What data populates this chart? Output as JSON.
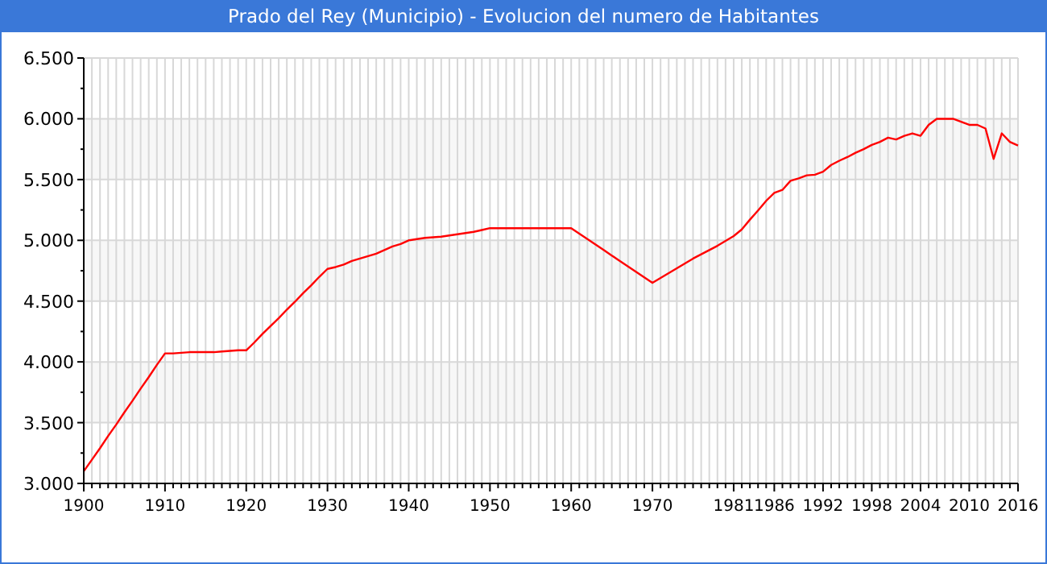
{
  "chart_data": {
    "type": "line",
    "title": "Prado del Rey (Municipio) - Evolucion del numero de Habitantes",
    "categories": [
      "1900",
      null,
      null,
      null,
      null,
      null,
      null,
      null,
      null,
      null,
      "1910",
      null,
      null,
      null,
      null,
      null,
      null,
      null,
      null,
      null,
      "1920",
      null,
      null,
      null,
      null,
      null,
      null,
      null,
      null,
      null,
      "1930",
      null,
      null,
      null,
      null,
      null,
      null,
      null,
      null,
      null,
      "1940",
      null,
      null,
      null,
      null,
      null,
      null,
      null,
      null,
      null,
      "1950",
      null,
      null,
      null,
      null,
      null,
      null,
      null,
      null,
      null,
      "1960",
      null,
      null,
      null,
      null,
      null,
      null,
      null,
      null,
      null,
      "1970",
      null,
      null,
      null,
      null,
      null,
      null,
      null,
      null,
      null,
      "1981",
      null,
      null,
      null,
      null,
      "1986",
      null,
      null,
      null,
      null,
      null,
      "1992",
      null,
      null,
      null,
      null,
      null,
      "1998",
      null,
      null,
      null,
      null,
      null,
      "2004",
      null,
      null,
      null,
      null,
      null,
      "2010",
      null,
      null,
      null,
      null,
      null,
      "2016"
    ],
    "values": [
      3100,
      3195,
      3290,
      3390,
      3485,
      3585,
      3680,
      3780,
      3875,
      3975,
      4070,
      4070,
      4075,
      4080,
      4080,
      4080,
      4080,
      4085,
      4090,
      4095,
      4095,
      4160,
      4230,
      4295,
      4360,
      4430,
      4495,
      4565,
      4630,
      4700,
      4765,
      4780,
      4800,
      4830,
      4850,
      4870,
      4890,
      4920,
      4950,
      4970,
      5000,
      5010,
      5020,
      5025,
      5030,
      5040,
      5050,
      5060,
      5070,
      5085,
      5100,
      5100,
      5100,
      5100,
      5100,
      5100,
      5100,
      5100,
      5100,
      5100,
      5100,
      5055,
      5010,
      4965,
      4920,
      4875,
      4830,
      4785,
      4740,
      4695,
      4650,
      4690,
      4730,
      4770,
      4810,
      4850,
      4885,
      4920,
      4955,
      4995,
      5035,
      5090,
      5170,
      5245,
      5325,
      5390,
      5415,
      5490,
      5510,
      5535,
      5540,
      5565,
      5620,
      5655,
      5685,
      5720,
      5750,
      5785,
      5810,
      5845,
      5830,
      5860,
      5880,
      5860,
      5950,
      6000,
      6000,
      6000,
      5975,
      5950,
      5950,
      5920,
      5670,
      5880,
      5810,
      5780
    ],
    "color": "#ff0000",
    "ylim": [
      3000,
      6500
    ],
    "yticks": [
      {
        "value": 3000,
        "label": "3.000"
      },
      {
        "value": 3500,
        "label": "3.500"
      },
      {
        "value": 4000,
        "label": "4.000"
      },
      {
        "value": 4500,
        "label": "4.500"
      },
      {
        "value": 5000,
        "label": "5.000"
      },
      {
        "value": 5500,
        "label": "5.500"
      },
      {
        "value": 6000,
        "label": "6.000"
      },
      {
        "value": 6500,
        "label": "6.500"
      }
    ],
    "grid": true
  }
}
